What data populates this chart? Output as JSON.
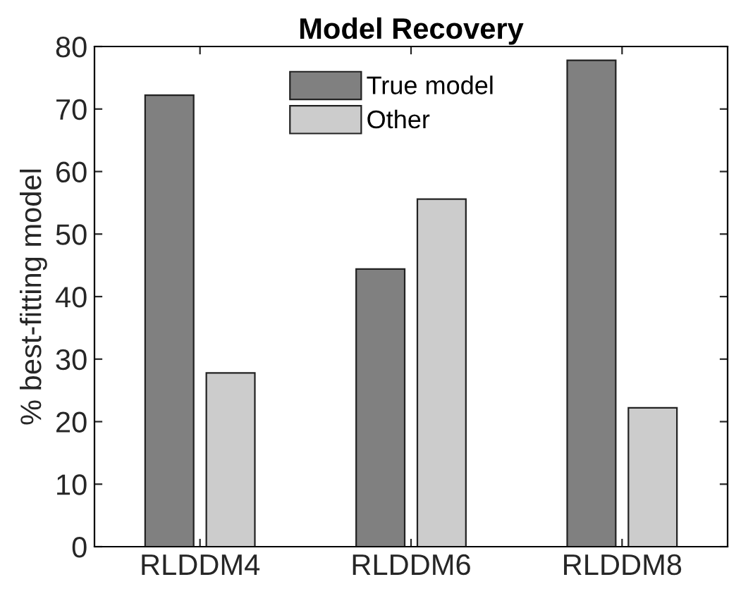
{
  "chart_data": {
    "type": "bar",
    "title": "Model Recovery",
    "ylabel": "% best-fitting model",
    "categories": [
      "RLDDM4",
      "RLDDM6",
      "RLDDM8"
    ],
    "series": [
      {
        "name": "True model",
        "color": "#808080",
        "values": [
          72.2,
          44.4,
          77.8
        ]
      },
      {
        "name": "Other",
        "color": "#cccccc",
        "values": [
          27.8,
          55.6,
          22.2
        ]
      }
    ],
    "ylim": [
      0,
      80
    ],
    "yticks": [
      0,
      10,
      20,
      30,
      40,
      50,
      60,
      70,
      80
    ],
    "legend": "top",
    "grid": false
  }
}
